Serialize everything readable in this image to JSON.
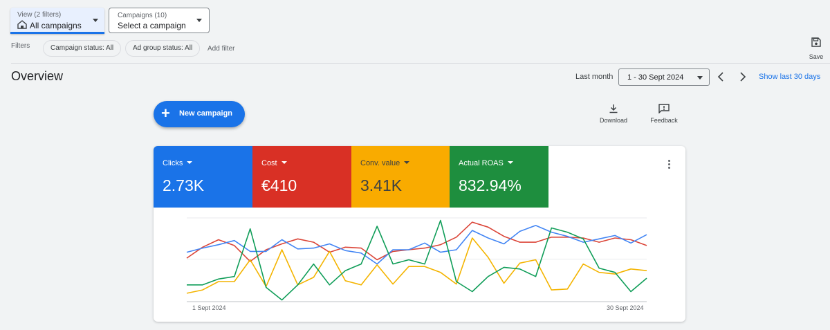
{
  "view": {
    "label": "View (2 filters)",
    "value": "All campaigns"
  },
  "campaigns": {
    "label": "Campaigns (10)",
    "value": "Select a campaign"
  },
  "filters": {
    "label": "Filters",
    "chips": [
      "Campaign status: All",
      "Ad group status: All"
    ],
    "add_label": "Add filter"
  },
  "save_label": "Save",
  "overview": {
    "title": "Overview",
    "range_label": "Last month",
    "date_range": "1 - 30 Sept 2024",
    "show_last_label": "Show last 30 days"
  },
  "actions": {
    "new_campaign": "New campaign",
    "download": "Download",
    "feedback": "Feedback"
  },
  "metrics": [
    {
      "name": "Clicks",
      "value": "2.73K",
      "color": "#1a73e8"
    },
    {
      "name": "Cost",
      "value": "€410",
      "color": "#d93025"
    },
    {
      "name": "Conv. value",
      "value": "3.41K",
      "color": "#f9ab00"
    },
    {
      "name": "Actual ROAS",
      "value": "832.94%",
      "color": "#1e8e3e"
    }
  ],
  "chart_data": {
    "type": "line",
    "x_start_label": "1 Sept 2024",
    "x_end_label": "30 Sept 2024",
    "x": [
      1,
      2,
      3,
      4,
      5,
      6,
      7,
      8,
      9,
      10,
      11,
      12,
      13,
      14,
      15,
      16,
      17,
      18,
      19,
      20,
      21,
      22,
      23,
      24,
      25,
      26,
      27,
      28,
      29,
      30
    ],
    "grid": true,
    "series": [
      {
        "name": "Clicks",
        "color": "#4285f4",
        "values": [
          0.41,
          0.36,
          0.32,
          0.27,
          0.4,
          0.4,
          0.26,
          0.37,
          0.36,
          0.31,
          0.39,
          0.42,
          0.55,
          0.38,
          0.38,
          0.3,
          0.41,
          0.38,
          0.15,
          0.24,
          0.31,
          0.16,
          0.09,
          0.17,
          0.22,
          0.29,
          0.25,
          0.21,
          0.3,
          0.2
        ]
      },
      {
        "name": "Cost",
        "color": "#db4437",
        "values": [
          0.48,
          0.35,
          0.26,
          0.33,
          0.52,
          0.38,
          0.31,
          0.25,
          0.29,
          0.41,
          0.35,
          0.36,
          0.5,
          0.4,
          0.38,
          0.36,
          0.32,
          0.23,
          0.05,
          0.11,
          0.22,
          0.29,
          0.29,
          0.23,
          0.23,
          0.24,
          0.29,
          0.24,
          0.26,
          0.33
        ]
      },
      {
        "name": "Conv. value",
        "color": "#f4b400",
        "values": [
          0.9,
          0.86,
          0.76,
          0.76,
          0.5,
          0.82,
          0.38,
          0.8,
          0.71,
          0.4,
          0.75,
          0.8,
          0.56,
          0.79,
          0.58,
          0.58,
          0.65,
          0.79,
          0.24,
          0.47,
          0.78,
          0.54,
          0.5,
          0.86,
          0.85,
          0.55,
          0.65,
          0.67,
          0.61,
          0.63
        ]
      },
      {
        "name": "Actual ROAS",
        "color": "#0f9d58",
        "values": [
          0.8,
          0.8,
          0.73,
          0.7,
          0.13,
          0.83,
          0.98,
          0.8,
          0.55,
          0.8,
          0.63,
          0.55,
          0.1,
          0.55,
          0.5,
          0.55,
          0.03,
          0.76,
          0.88,
          0.7,
          0.59,
          0.61,
          0.7,
          0.12,
          0.17,
          0.25,
          0.6,
          0.65,
          0.88,
          0.72
        ]
      }
    ]
  }
}
